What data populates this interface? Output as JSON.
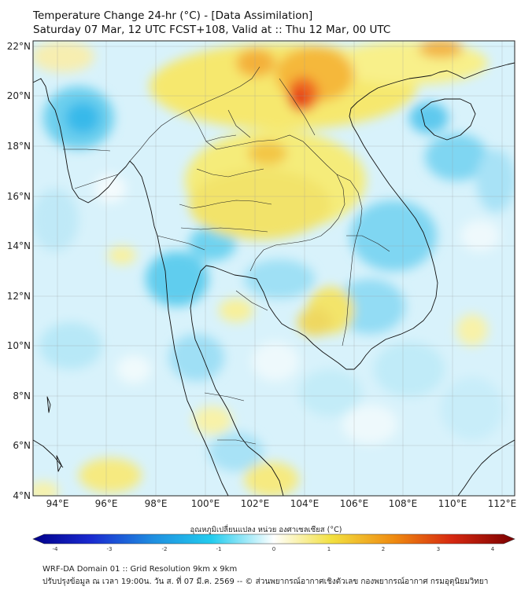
{
  "title": {
    "line1": "Temperature Change 24-hr (°C) - [Data Assimilation]",
    "line2": "Saturday 07 Mar, 12 UTC FCST+108, Valid at :: Thu 12 Mar, 00 UTC"
  },
  "axes": {
    "lat_labels": [
      "22°N",
      "20°N",
      "18°N",
      "16°N",
      "14°N",
      "12°N",
      "10°N",
      "8°N",
      "6°N",
      "4°N"
    ],
    "lon_labels": [
      "94°E",
      "96°E",
      "98°E",
      "100°E",
      "102°E",
      "104°E",
      "106°E",
      "108°E",
      "110°E",
      "112°E"
    ]
  },
  "colorbar": {
    "label": "อุณหภูมิเปลี่ยนแปลง หน่วย องศาเซลเซียส (°C)",
    "ticks": [
      "-4",
      "-3",
      "-2",
      "-1",
      "0",
      "1",
      "2",
      "3",
      "4"
    ],
    "colors": {
      "deep_blue": "#00008a",
      "cyan": "#22ccee",
      "white": "#ffffff",
      "yellow": "#f2e040",
      "orange": "#ef8a10",
      "dark_red": "#7a0000"
    }
  },
  "footer": {
    "line1": "WRF-DA Domain 01 :: Grid Resolution 9km x 9km",
    "line2": "ปรับปรุงข้อมูล ณ เวลา 19:00น. วัน ส. ที่ 07 มี.ค. 2569 -- © ส่วนพยากรณ์อากาศเชิงตัวเลข กองพยากรณ์อากาศ กรมอุตุนิยมวิทยา"
  }
}
